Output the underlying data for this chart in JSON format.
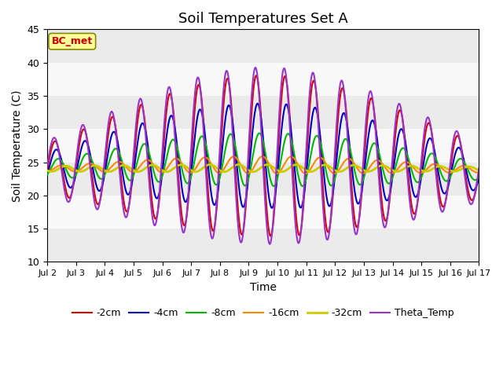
{
  "title": "Soil Temperatures Set A",
  "xlabel": "Time",
  "ylabel": "Soil Temperature (C)",
  "ylim": [
    10,
    45
  ],
  "xlim": [
    0,
    15
  ],
  "x_tick_labels": [
    "Jul 2",
    "Jul 3",
    "Jul 4",
    "Jul 5",
    "Jul 6",
    "Jul 7",
    "Jul 8",
    "Jul 9",
    "Jul 10",
    "Jul 11",
    "Jul 12",
    "Jul 13",
    "Jul 14",
    "Jul 15",
    "Jul 16",
    "Jul 17"
  ],
  "bc_met_label": "BC_met",
  "bc_met_color": "#cc0000",
  "bc_met_bg": "#ffff99",
  "bc_met_edge": "#888800",
  "lines": [
    {
      "label": "-2cm",
      "color": "#dd0000",
      "lw": 1.5
    },
    {
      "label": "-4cm",
      "color": "#0000cc",
      "lw": 1.5
    },
    {
      "label": "-8cm",
      "color": "#00bb00",
      "lw": 1.5
    },
    {
      "label": "-16cm",
      "color": "#ff8800",
      "lw": 1.5
    },
    {
      "label": "-32cm",
      "color": "#cccc00",
      "lw": 2.0
    },
    {
      "label": "Theta_Temp",
      "color": "#9933cc",
      "lw": 1.5
    }
  ],
  "mean_temp": 24.0,
  "n_points": 2000,
  "band_colors": [
    "#ebebeb",
    "#f8f8f8"
  ],
  "y_bands": [
    10,
    15,
    20,
    25,
    30,
    35,
    40,
    45
  ]
}
